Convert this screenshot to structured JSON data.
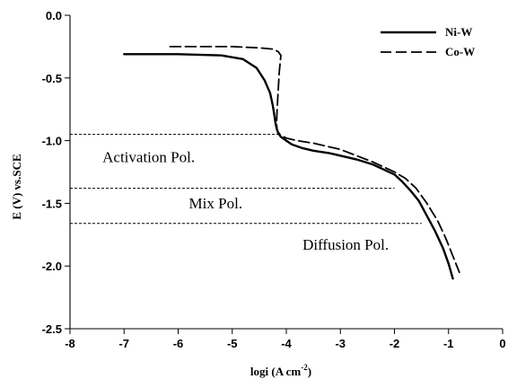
{
  "chart_data": {
    "type": "line",
    "title": "",
    "xlabel_base": "logi (A cm",
    "xlabel_sup": "-2",
    "xlabel_close": ")",
    "ylabel": "E (V) vs.SCE",
    "xlim": [
      -8,
      0
    ],
    "ylim": [
      -2.5,
      0.0
    ],
    "xticks": [
      -8,
      -7,
      -6,
      -5,
      -4,
      -3,
      -2,
      -1,
      0
    ],
    "xtick_labels": [
      "-8",
      "-7",
      "-6",
      "-5",
      "-4",
      "-3",
      "-2",
      "-1",
      "0"
    ],
    "yticks": [
      0.0,
      -0.5,
      -1.0,
      -1.5,
      -2.0,
      -2.5
    ],
    "ytick_labels": [
      "0.0",
      "-0.5",
      "-1.0",
      "-1.5",
      "-2.0",
      "-2.5"
    ],
    "grid": false,
    "legend_position": "top-right",
    "series": [
      {
        "name": "Ni-W",
        "style": "solid",
        "color": "#000000",
        "x": [
          -7.0,
          -6.0,
          -5.2,
          -4.8,
          -4.55,
          -4.4,
          -4.3,
          -4.25,
          -4.22,
          -4.2,
          -4.18,
          -4.15,
          -4.1,
          -4.0,
          -3.9,
          -3.7,
          -3.5,
          -3.2,
          -3.0,
          -2.7,
          -2.4,
          -2.2,
          -2.0,
          -1.85,
          -1.7,
          -1.55,
          -1.4,
          -1.25,
          -1.1,
          -1.0,
          -0.92
        ],
        "y": [
          -0.31,
          -0.31,
          -0.32,
          -0.35,
          -0.42,
          -0.52,
          -0.62,
          -0.72,
          -0.8,
          -0.86,
          -0.9,
          -0.94,
          -0.97,
          -1.0,
          -1.03,
          -1.06,
          -1.08,
          -1.1,
          -1.12,
          -1.15,
          -1.19,
          -1.23,
          -1.27,
          -1.33,
          -1.4,
          -1.48,
          -1.6,
          -1.72,
          -1.86,
          -1.98,
          -2.1
        ]
      },
      {
        "name": "Co-W",
        "style": "dashed",
        "color": "#000000",
        "x": [
          -6.15,
          -5.0,
          -4.5,
          -4.25,
          -4.15,
          -4.1,
          -4.13,
          -4.15,
          -4.17,
          -4.18,
          -4.17,
          -4.12,
          -4.0,
          -3.8,
          -3.5,
          -3.0,
          -2.7,
          -2.4,
          -2.2,
          -2.0,
          -1.8,
          -1.6,
          -1.4,
          -1.2,
          -1.05,
          -0.92,
          -0.8
        ],
        "y": [
          -0.25,
          -0.25,
          -0.26,
          -0.27,
          -0.29,
          -0.32,
          -0.45,
          -0.6,
          -0.75,
          -0.86,
          -0.92,
          -0.95,
          -0.98,
          -1.0,
          -1.02,
          -1.07,
          -1.12,
          -1.17,
          -1.21,
          -1.25,
          -1.3,
          -1.38,
          -1.5,
          -1.64,
          -1.78,
          -1.92,
          -2.05
        ]
      }
    ],
    "reference_lines": [
      {
        "y": -0.95,
        "x_start": -8,
        "x_end": -4.1
      },
      {
        "y": -1.38,
        "x_start": -8,
        "x_end": -2.0
      },
      {
        "y": -1.66,
        "x_start": -8,
        "x_end": -1.5
      }
    ],
    "annotations": [
      {
        "text": "Activation Pol.",
        "x": -7.4,
        "y": -1.17
      },
      {
        "text": "Mix Pol.",
        "x": -5.8,
        "y": -1.54
      },
      {
        "text": "Diffusion Pol.",
        "x": -3.7,
        "y": -1.87
      }
    ]
  }
}
